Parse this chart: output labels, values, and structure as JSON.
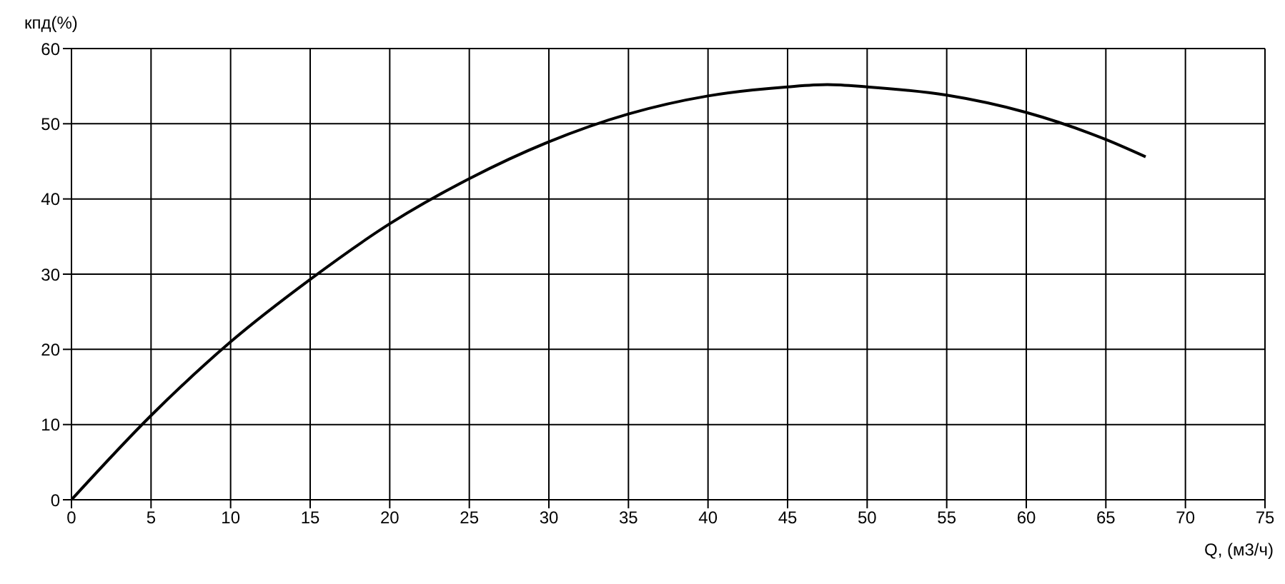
{
  "chart_data": {
    "type": "line",
    "xlabel": "Q, (м3/ч)",
    "ylabel": "кпд(%)",
    "xlim": [
      0,
      75
    ],
    "xticks": [
      0,
      5,
      10,
      15,
      20,
      25,
      30,
      35,
      40,
      45,
      50,
      55,
      60,
      65,
      70,
      75
    ],
    "ylim": [
      0,
      60
    ],
    "yticks": [
      0,
      10,
      20,
      30,
      40,
      50,
      60
    ],
    "grid": true,
    "marker": "none",
    "line_style": "solid",
    "series": [
      {
        "color": "#000000",
        "x": [
          0,
          5,
          10,
          15,
          20,
          25,
          30,
          35,
          40,
          45,
          47.5,
          50,
          55,
          60,
          65,
          67.5
        ],
        "values": [
          0,
          11.2,
          21,
          29.3,
          36.7,
          42.7,
          47.6,
          51.3,
          53.7,
          54.9,
          55.2,
          54.9,
          53.8,
          51.5,
          47.9,
          45.6
        ]
      }
    ]
  }
}
